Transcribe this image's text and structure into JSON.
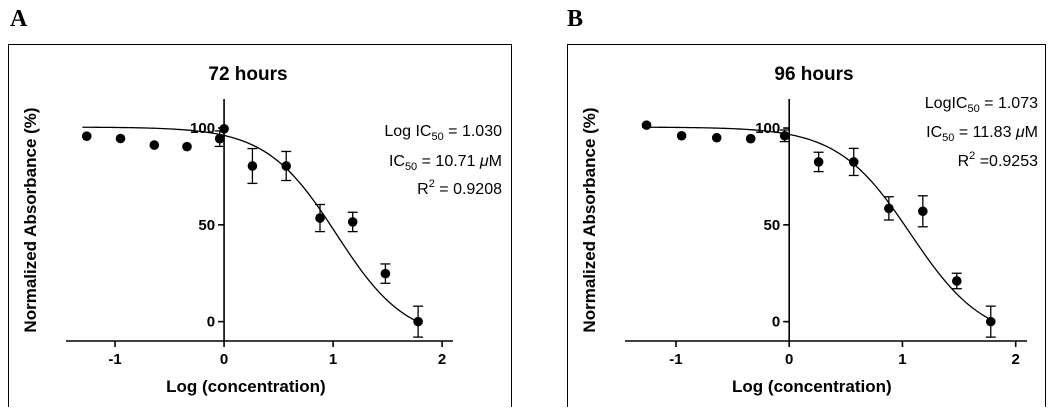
{
  "panels": [
    {
      "letter": "A"
    },
    {
      "letter": "B"
    }
  ],
  "chart_data": [
    {
      "type": "scatter",
      "title": "72 hours",
      "xlabel": "Log (concentration)",
      "ylabel": "Normalized Absorbance (%)",
      "xlim": [
        -1.45,
        2.1
      ],
      "ylim": [
        -10,
        115
      ],
      "x_ticks": [
        -1,
        0,
        1,
        2
      ],
      "y_ticks": [
        0,
        50,
        100
      ],
      "grid": false,
      "annotations": {
        "logic50_label": "Log IC",
        "logic50_sub": "50",
        "logic50_value": " = 1.030",
        "ic50_label": "IC",
        "ic50_sub": "50",
        "ic50_value": " = 10.71 ",
        "ic50_mu": "μ",
        "ic50_unit": "M",
        "r2_label": "R",
        "r2_sup": "2",
        "r2_value": " = 0.9208"
      },
      "points": [
        {
          "x": -1.26,
          "y": 95.8,
          "err": 0
        },
        {
          "x": -0.95,
          "y": 94.6,
          "err": 0
        },
        {
          "x": -0.64,
          "y": 91.2,
          "err": 0
        },
        {
          "x": -0.34,
          "y": 90.4,
          "err": 0
        },
        {
          "x": -0.04,
          "y": 94.5,
          "err": 4
        },
        {
          "x": 0.0,
          "y": 99.6,
          "err": 0
        },
        {
          "x": 0.26,
          "y": 80.4,
          "err": 9
        },
        {
          "x": 0.57,
          "y": 80.4,
          "err": 7.5
        },
        {
          "x": 0.88,
          "y": 53.5,
          "err": 7
        },
        {
          "x": 1.18,
          "y": 51.5,
          "err": 5
        },
        {
          "x": 1.48,
          "y": 24.8,
          "err": 5
        },
        {
          "x": 1.78,
          "y": 0.0,
          "err": 8
        }
      ],
      "fit": {
        "top": 100.5,
        "bottom": -10,
        "logic50": 1.03,
        "hill": 1.35,
        "x_range": [
          -1.3,
          1.78
        ]
      }
    },
    {
      "type": "scatter",
      "title": "96 hours",
      "xlabel": "Log (concentration)",
      "ylabel": "Normalized Absorbance (%)",
      "xlim": [
        -1.45,
        2.1
      ],
      "ylim": [
        -10,
        115
      ],
      "x_ticks": [
        -1,
        0,
        1,
        2
      ],
      "y_ticks": [
        0,
        50,
        100
      ],
      "grid": false,
      "annotations": {
        "logic50_label": "LogIC",
        "logic50_sub": "50",
        "logic50_value": " = 1.073",
        "ic50_label": "IC",
        "ic50_sub": "50",
        "ic50_value": " = 11.83 ",
        "ic50_mu": "μ",
        "ic50_unit": "M",
        "r2_label": "R",
        "r2_sup": "2",
        "r2_value": " =0.9253"
      },
      "points": [
        {
          "x": -1.26,
          "y": 101.5,
          "err": 0
        },
        {
          "x": -0.95,
          "y": 96.0,
          "err": 0
        },
        {
          "x": -0.64,
          "y": 95.0,
          "err": 0
        },
        {
          "x": -0.34,
          "y": 94.5,
          "err": 0
        },
        {
          "x": -0.04,
          "y": 96.0,
          "err": 3
        },
        {
          "x": 0.26,
          "y": 82.5,
          "err": 5
        },
        {
          "x": 0.57,
          "y": 82.5,
          "err": 7
        },
        {
          "x": 0.88,
          "y": 58.5,
          "err": 6
        },
        {
          "x": 1.18,
          "y": 57.0,
          "err": 8
        },
        {
          "x": 1.48,
          "y": 21.0,
          "err": 4
        },
        {
          "x": 1.78,
          "y": 0.0,
          "err": 8
        }
      ],
      "fit": {
        "top": 100.5,
        "bottom": -10,
        "logic50": 1.073,
        "hill": 1.35,
        "x_range": [
          -1.3,
          1.78
        ]
      }
    }
  ]
}
